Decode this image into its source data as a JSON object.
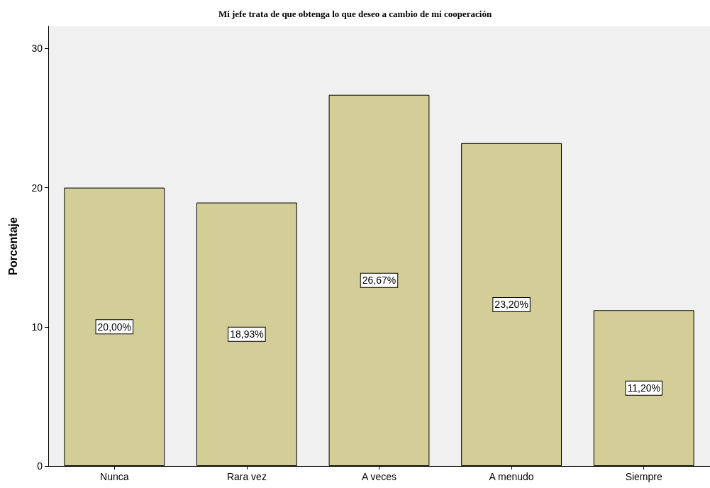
{
  "chart_data": {
    "type": "bar",
    "title": "Mi jefe trata de que obtenga lo que deseo a cambio de mi cooperación",
    "ylabel": "Porcentaje",
    "categories": [
      "Nunca",
      "Rara vez",
      "A veces",
      "A menudo",
      "Siempre"
    ],
    "values": [
      20.0,
      18.93,
      26.67,
      23.2,
      11.2
    ],
    "value_labels": [
      "20,00%",
      "18,93%",
      "26,67%",
      "23,20%",
      "11,20%"
    ],
    "color": "#d3ce97",
    "ylim": [
      0,
      31.6
    ],
    "yticks": [
      0,
      10,
      20,
      30
    ]
  }
}
